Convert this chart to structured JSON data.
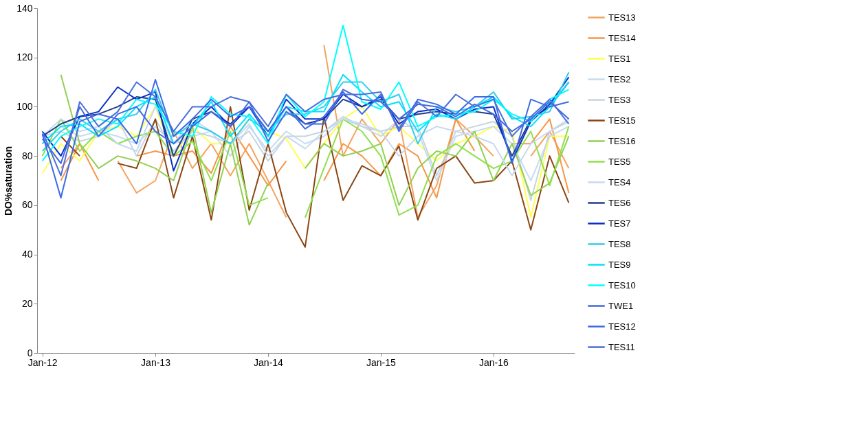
{
  "chart_data": {
    "type": "line",
    "ylabel": "DO%saturation",
    "ylim": [
      0,
      140
    ],
    "yticks": [
      0,
      20,
      40,
      60,
      80,
      100,
      120,
      140
    ],
    "xlim": [
      "2011-12-15",
      "2016-09-20"
    ],
    "xticks": [
      {
        "value": "2012-01-01",
        "label": "Jan-12"
      },
      {
        "value": "2013-01-01",
        "label": "Jan-13"
      },
      {
        "value": "2014-01-01",
        "label": "Jan-14"
      },
      {
        "value": "2015-01-01",
        "label": "Jan-15"
      },
      {
        "value": "2016-01-01",
        "label": "Jan-16"
      }
    ],
    "grid": false,
    "legend": "right",
    "marker": "none",
    "line_style": "solid",
    "x": [
      "2012-01",
      "2012-03",
      "2012-05",
      "2012-07",
      "2012-09",
      "2012-11",
      "2013-01",
      "2013-03",
      "2013-05",
      "2013-07",
      "2013-09",
      "2013-11",
      "2014-01",
      "2014-03",
      "2014-05",
      "2014-07",
      "2014-09",
      "2014-11",
      "2015-01",
      "2015-03",
      "2015-05",
      "2015-07",
      "2015-09",
      "2015-11",
      "2016-01",
      "2016-03",
      "2016-05",
      "2016-07",
      "2016-09"
    ],
    "series": [
      {
        "name": "TES13",
        "color": "#f4a460",
        "values": [
          null,
          75,
          85,
          null,
          78,
          65,
          70,
          90,
          75,
          85,
          72,
          85,
          70,
          55,
          null,
          125,
          80,
          95,
          85,
          95,
          55,
          68,
          95,
          88,
          80,
          null,
          80,
          90,
          75
        ]
      },
      {
        "name": "TES14",
        "color": "#f79646",
        "values": [
          null,
          70,
          85,
          70,
          null,
          80,
          82,
          80,
          82,
          73,
          92,
          80,
          68,
          78,
          null,
          70,
          85,
          80,
          72,
          85,
          80,
          63,
          95,
          82,
          null,
          85,
          85,
          95,
          65
        ]
      },
      {
        "name": "TES1",
        "color": "#ffff4d",
        "values": [
          73,
          85,
          78,
          90,
          92,
          88,
          100,
          80,
          92,
          85,
          85,
          95,
          90,
          87,
          75,
          85,
          95,
          100,
          88,
          92,
          85,
          78,
          85,
          88,
          92,
          90,
          55,
          88,
          88
        ]
      },
      {
        "name": "TES2",
        "color": "#c6dcf0",
        "values": [
          85,
          92,
          88,
          90,
          88,
          85,
          92,
          85,
          88,
          90,
          80,
          92,
          82,
          90,
          85,
          88,
          95,
          92,
          88,
          95,
          90,
          70,
          88,
          90,
          92,
          85,
          70,
          88,
          92
        ]
      },
      {
        "name": "TES3",
        "color": "#c5d5de",
        "values": [
          88,
          90,
          86,
          88,
          95,
          80,
          95,
          82,
          90,
          88,
          85,
          90,
          78,
          88,
          88,
          90,
          96,
          92,
          90,
          92,
          92,
          72,
          90,
          92,
          94,
          88,
          62,
          90,
          94
        ]
      },
      {
        "name": "TES15",
        "color": "#8b4513",
        "values": [
          null,
          88,
          80,
          null,
          77,
          75,
          95,
          63,
          88,
          54,
          100,
          58,
          85,
          57,
          43,
          96,
          62,
          76,
          72,
          84,
          54,
          75,
          80,
          69,
          70,
          78,
          50,
          80,
          61
        ]
      },
      {
        "name": "TES16",
        "color": "#92d050",
        "values": [
          null,
          113,
          85,
          75,
          80,
          78,
          75,
          70,
          92,
          57,
          85,
          52,
          69,
          null,
          75,
          85,
          80,
          82,
          85,
          60,
          75,
          82,
          80,
          90,
          70,
          85,
          64,
          69,
          88
        ]
      },
      {
        "name": "TES5",
        "color": "#8ee04d",
        "values": [
          80,
          95,
          82,
          90,
          85,
          88,
          90,
          80,
          86,
          70,
          90,
          60,
          63,
          null,
          55,
          75,
          95,
          90,
          80,
          56,
          60,
          80,
          85,
          80,
          75,
          78,
          90,
          68,
          92
        ]
      },
      {
        "name": "TES4",
        "color": "#c6d9f1",
        "values": [
          88,
          95,
          90,
          92,
          85,
          82,
          100,
          85,
          95,
          90,
          85,
          93,
          80,
          88,
          83,
          90,
          95,
          93,
          90,
          80,
          88,
          92,
          90,
          88,
          85,
          72,
          85,
          90,
          95
        ]
      },
      {
        "name": "TES6",
        "color": "#1f3e8c",
        "values": [
          88,
          93,
          96,
          97,
          100,
          104,
          103,
          80,
          95,
          98,
          93,
          100,
          90,
          100,
          93,
          95,
          103,
          100,
          103,
          95,
          97,
          98,
          97,
          98,
          97,
          80,
          95,
          100,
          110
        ]
      },
      {
        "name": "TES7",
        "color": "#0a2fc9",
        "values": [
          90,
          80,
          96,
          98,
          108,
          103,
          106,
          74,
          93,
          100,
          92,
          100,
          88,
          103,
          95,
          95,
          105,
          100,
          104,
          93,
          98,
          99,
          95,
          99,
          100,
          78,
          94,
          101,
          112
        ]
      },
      {
        "name": "TES8",
        "color": "#33ccee",
        "values": [
          82,
          90,
          95,
          90,
          95,
          97,
          107,
          88,
          93,
          90,
          85,
          95,
          90,
          97,
          97,
          100,
          110,
          110,
          102,
          105,
          85,
          100,
          98,
          100,
          106,
          95,
          96,
          98,
          114
        ]
      },
      {
        "name": "TES9",
        "color": "#00e0ff",
        "values": [
          85,
          92,
          93,
          88,
          92,
          100,
          104,
          85,
          92,
          102,
          88,
          97,
          88,
          100,
          98,
          98,
          113,
          106,
          100,
          102,
          90,
          97,
          95,
          100,
          104,
          96,
          92,
          100,
          110
        ]
      },
      {
        "name": "TES10",
        "color": "#00ffff",
        "values": [
          78,
          88,
          92,
          95,
          93,
          103,
          101,
          90,
          88,
          104,
          97,
          96,
          85,
          105,
          96,
          102,
          133,
          102,
          99,
          110,
          92,
          96,
          97,
          98,
          103,
          97,
          94,
          103,
          107
        ]
      },
      {
        "name": "TWE1",
        "color": "#4169e1",
        "values": [
          87,
          77,
          100,
          88,
          97,
          100,
          90,
          85,
          92,
          98,
          92,
          102,
          86,
          98,
          93,
          93,
          107,
          103,
          102,
          95,
          101,
          100,
          96,
          101,
          97,
          90,
          95,
          102,
          95
        ]
      },
      {
        "name": "TES12",
        "color": "#3b6ae8",
        "values": [
          89,
          63,
          94,
          97,
          95,
          85,
          111,
          88,
          95,
          103,
          96,
          100,
          90,
          100,
          91,
          96,
          106,
          97,
          105,
          91,
          103,
          101,
          97,
          104,
          104,
          77,
          103,
          100,
          102
        ]
      },
      {
        "name": "TES11",
        "color": "#4a6fdb",
        "values": [
          90,
          72,
          102,
          92,
          98,
          110,
          104,
          90,
          100,
          100,
          104,
          102,
          92,
          105,
          98,
          103,
          105,
          105,
          106,
          90,
          102,
          96,
          105,
          100,
          103,
          88,
          96,
          103,
          93
        ]
      }
    ]
  }
}
